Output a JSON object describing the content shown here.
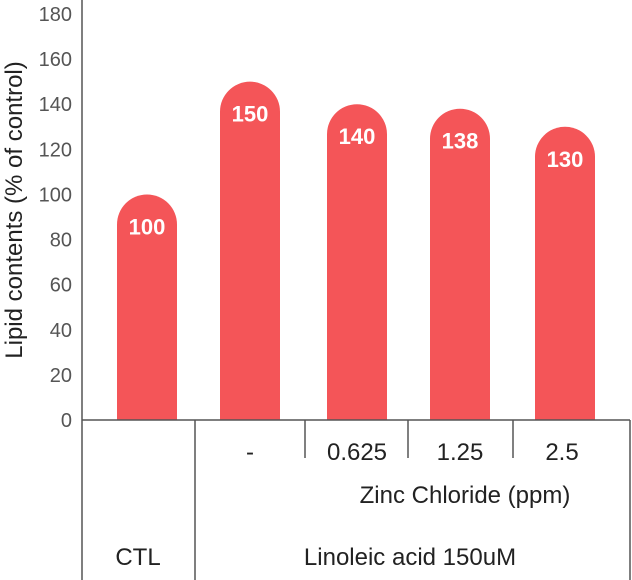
{
  "chart_data": {
    "type": "bar",
    "ylabel": "Lipid contents (% of control)",
    "ylim": [
      0,
      180
    ],
    "yticks": [
      0,
      20,
      40,
      60,
      80,
      100,
      120,
      140,
      160,
      180
    ],
    "categories": [
      "CTL",
      "-",
      "0.625",
      "1.25",
      "2.5"
    ],
    "values": [
      100,
      150,
      140,
      138,
      130
    ],
    "data_labels": [
      "100",
      "150",
      "140",
      "138",
      "130"
    ],
    "bar_color": "#f45558",
    "grid": false,
    "group_labels": {
      "zinc": "Zinc Chloride (ppm)",
      "ctl": "CTL",
      "linoleic": "Linoleic acid 150uM"
    }
  }
}
